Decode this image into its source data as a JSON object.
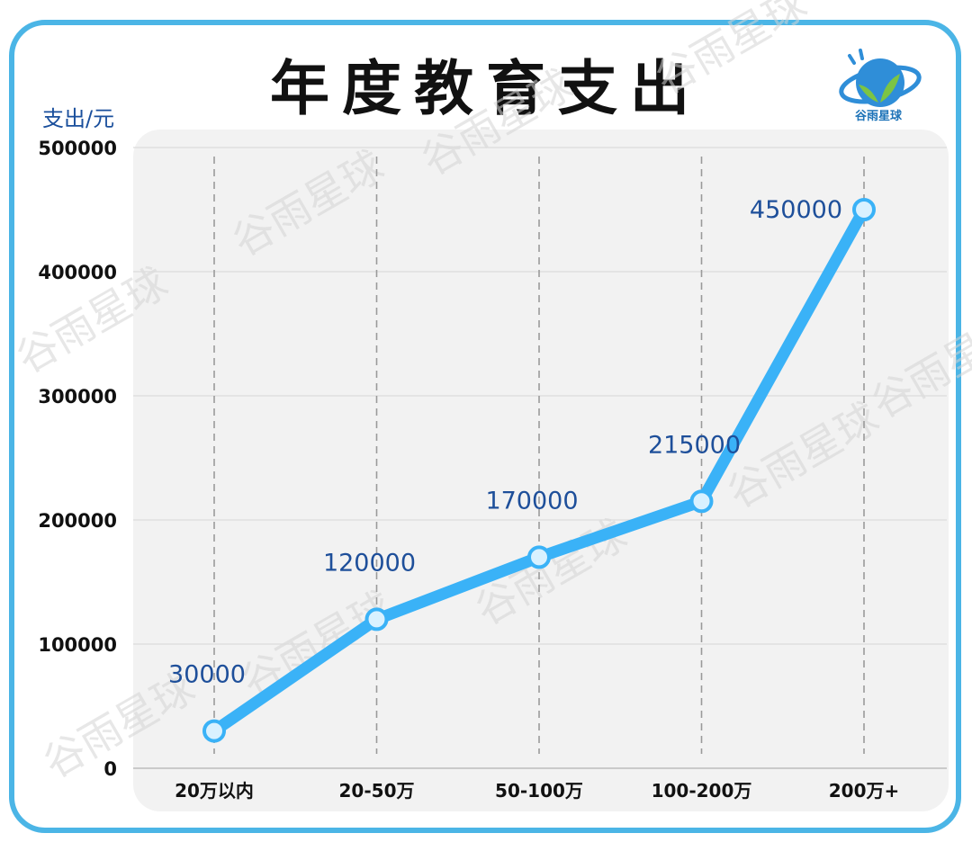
{
  "logo": {
    "text": "谷雨星球",
    "icon": "planet-sprout-logo-icon"
  },
  "colors": {
    "frame": "#4bb5e6",
    "line": "#3ab2f7",
    "marker_fill": "#d9f1ff",
    "label": "#1e4f9a",
    "plot_bg": "#f2f2f2"
  },
  "chart_data": {
    "type": "line",
    "title": "年度教育支出",
    "ylabel": "支出/元",
    "xlabel": "",
    "categories": [
      "20万以内",
      "20-50万",
      "50-100万",
      "100-200万",
      "200万+"
    ],
    "values": [
      30000,
      120000,
      170000,
      215000,
      450000
    ],
    "data_labels": [
      "30000",
      "120000",
      "170000",
      "215000",
      "450000"
    ],
    "ylim": [
      0,
      500000
    ],
    "yticks": [
      0,
      100000,
      200000,
      300000,
      400000,
      500000
    ],
    "ytick_labels": [
      "0",
      "100000",
      "200000",
      "300000",
      "400000",
      "500000"
    ],
    "grid": true,
    "watermark": "谷雨星球"
  }
}
